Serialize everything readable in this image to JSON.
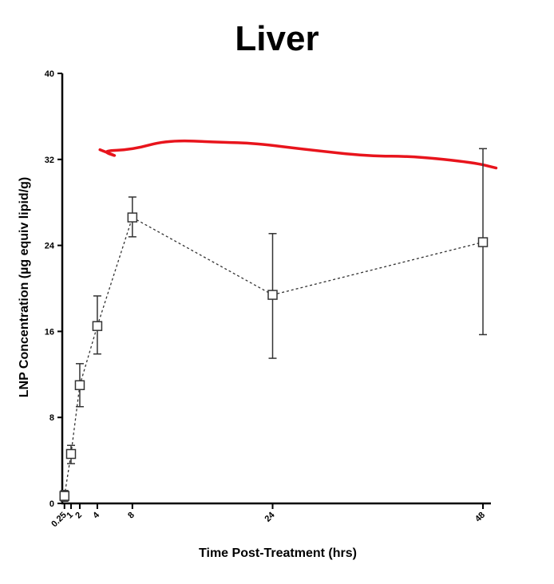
{
  "chart_data": {
    "type": "line",
    "title": "Liver",
    "xlabel": "Time Post-Treatment (hrs)",
    "ylabel": "LNP Concentration (µg equiv lipid/g)",
    "xlim": [
      0,
      48
    ],
    "ylim": [
      0,
      40
    ],
    "x_ticks": [
      0.25,
      1,
      2,
      4,
      8,
      24,
      48
    ],
    "x_tick_labels": [
      "0.25",
      "1",
      "2",
      "4",
      "8",
      "24",
      "48"
    ],
    "y_ticks": [
      0,
      8,
      16,
      24,
      32,
      40
    ],
    "y_tick_labels": [
      "0",
      "8",
      "16",
      "24",
      "32",
      "40"
    ],
    "series": [
      {
        "name": "LNP",
        "marker": "open-square",
        "line_style": "dotted",
        "x": [
          0.25,
          1,
          2,
          4,
          8,
          24,
          48
        ],
        "y": [
          0.7,
          4.6,
          11.0,
          16.5,
          26.6,
          19.4,
          24.3
        ],
        "err_low": [
          0.2,
          3.7,
          9.0,
          13.9,
          24.8,
          13.5,
          15.7
        ],
        "err_high": [
          1.2,
          5.4,
          13.0,
          19.3,
          28.5,
          25.1,
          33.0
        ]
      }
    ],
    "annotation": {
      "type": "freehand-line",
      "color": "#e8141c",
      "description": "red hand-drawn stroke",
      "trace": [
        [
          4.3,
          32.9
        ],
        [
          6.5,
          32.2
        ],
        [
          4.4,
          32.8
        ],
        [
          8,
          32.9
        ],
        [
          12,
          33.8
        ],
        [
          18,
          33.6
        ],
        [
          22,
          33.5
        ],
        [
          28,
          32.9
        ],
        [
          35,
          32.3
        ],
        [
          40,
          32.3
        ],
        [
          47,
          31.7
        ],
        [
          49.5,
          31.2
        ]
      ]
    },
    "colors": {
      "line": "#333333",
      "marker_fill": "#ffffff",
      "marker_stroke": "#333333",
      "axis": "#000000"
    }
  }
}
